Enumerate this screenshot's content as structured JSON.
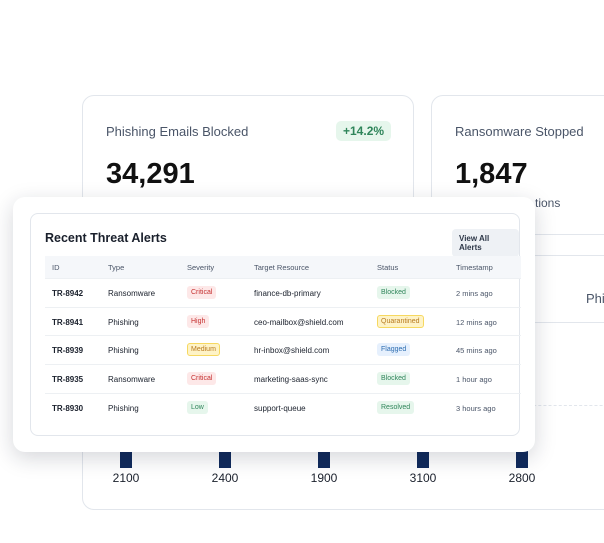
{
  "cards": [
    {
      "title": "Phishing Emails Blocked",
      "value": "34,291",
      "change": "+14.2%",
      "note": null
    },
    {
      "title": "Ransomware Stopped",
      "value": "1,847",
      "change": null,
      "note": "tions"
    }
  ],
  "chart": {
    "title": "Phis",
    "values": [
      2100,
      2400,
      1900,
      3100,
      2800
    ]
  },
  "table": {
    "title": "Recent Threat Alerts",
    "button": "View All Alerts",
    "columns": [
      "ID",
      "Type",
      "Severity",
      "Target Resource",
      "Status",
      "Timestamp"
    ],
    "rows": [
      [
        "TR-8942",
        "Ransomware",
        "Critical",
        "finance-db-primary",
        "Blocked",
        "2 mins ago"
      ],
      [
        "TR-8941",
        "Phishing",
        "High",
        "ceo-mailbox@shield.com",
        "Quarantined",
        "12 mins ago"
      ],
      [
        "TR-8939",
        "Phishing",
        "Medium",
        "hr-inbox@shield.com",
        "Flagged",
        "45 mins ago"
      ],
      [
        "TR-8935",
        "Ransomware",
        "Critical",
        "marketing-saas-sync",
        "Blocked",
        "1 hour ago"
      ],
      [
        "TR-8930",
        "Phishing",
        "Low",
        "support-queue",
        "Resolved",
        "3 hours ago"
      ]
    ]
  }
}
